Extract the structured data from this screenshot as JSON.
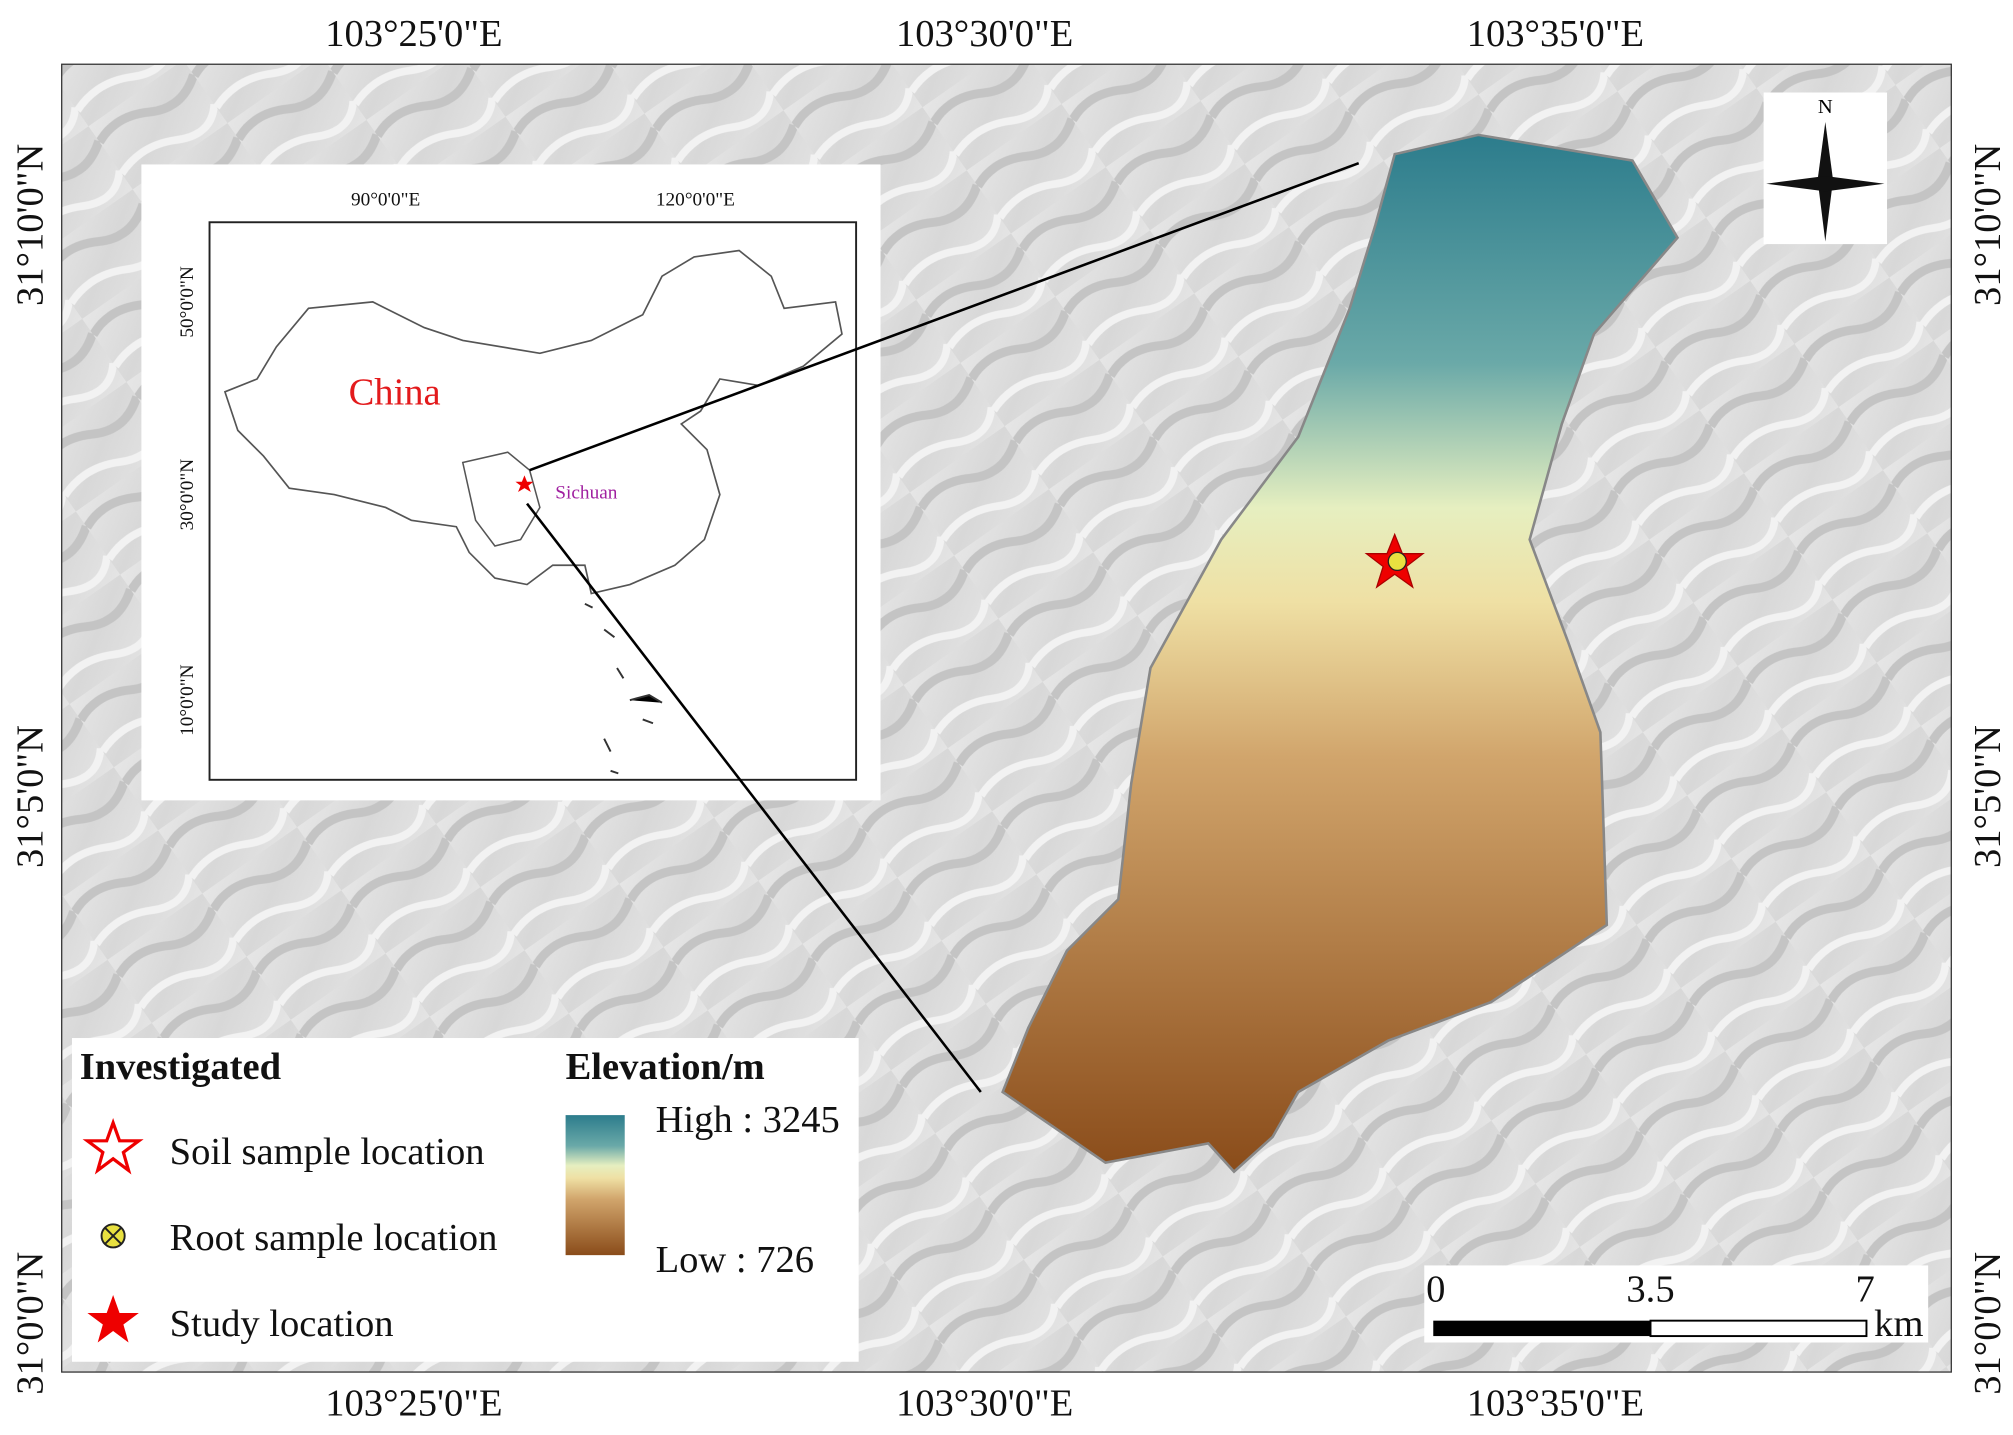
{
  "map": {
    "top_labels": [
      "103°25'0\"E",
      "103°30'0\"E",
      "103°35'0\"E"
    ],
    "bottom_labels": [
      "103°25'0\"E",
      "103°30'0\"E",
      "103°35'0\"E"
    ],
    "left_labels": [
      "31°10'0\"N",
      "31°5'0\"N",
      "31°0'0\"N"
    ],
    "right_labels": [
      "31°10'0\"N",
      "31°5'0\"N",
      "31°0'0\"N"
    ],
    "north_arrow": "N"
  },
  "inset": {
    "x_labels": [
      "90°0'0\"E",
      "120°0'0\"E"
    ],
    "y_labels": [
      "50°0'0\"N",
      "30°0'0\"N",
      "10°0'0\"N"
    ],
    "country": "China",
    "province": "Sichuan"
  },
  "legend": {
    "investigated_title": "Investigated",
    "items": [
      "Soil sample location",
      "Root sample location",
      "Study location"
    ],
    "elevation_title": "Elevation/m",
    "high": "High : 3245",
    "low": "Low : 726"
  },
  "scale_bar": {
    "labels": [
      "0",
      "3.5",
      "7"
    ],
    "unit": "km"
  }
}
